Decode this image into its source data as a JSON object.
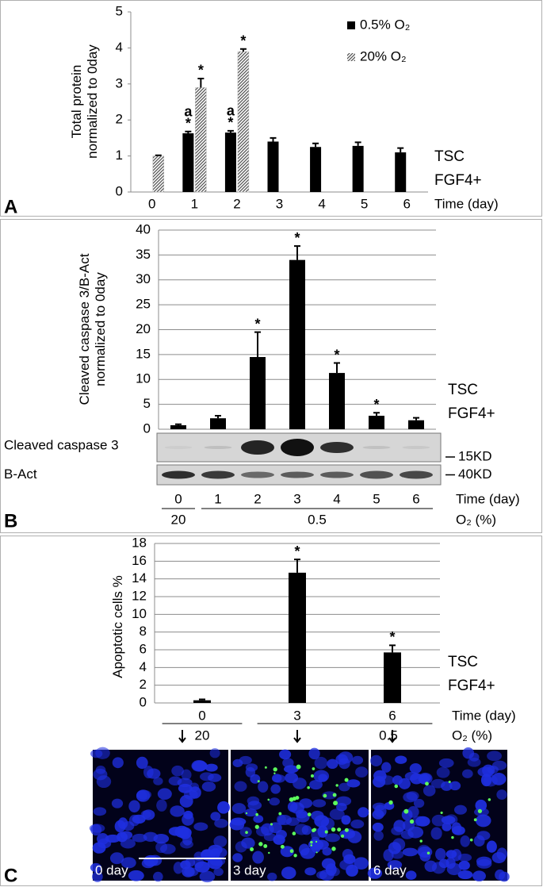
{
  "chart_data": [
    {
      "type": "bar",
      "panel": "A",
      "y_label": [
        "Total protein",
        "normalized to 0day"
      ],
      "categories": [
        "0",
        "1",
        "2",
        "3",
        "4",
        "5",
        "6"
      ],
      "x_label": "Time (day)",
      "row_labels": [
        "TSC",
        "FGF4+"
      ],
      "series": [
        {
          "name": "0.5% O₂",
          "color": "#000000",
          "pattern": "solid",
          "values": [
            null,
            1.63,
            1.65,
            1.4,
            1.25,
            1.28,
            1.1
          ],
          "errors": [
            null,
            0.05,
            0.05,
            0.1,
            0.1,
            0.1,
            0.12
          ],
          "marks": [
            null,
            [
              "*",
              "a"
            ],
            [
              "*",
              "a"
            ],
            null,
            null,
            null,
            null
          ]
        },
        {
          "name": "20% O₂",
          "color": "#555555",
          "pattern": "hatch",
          "values": [
            1.0,
            2.9,
            3.9,
            null,
            null,
            null,
            null
          ],
          "errors": [
            0.02,
            0.25,
            0.07,
            null,
            null,
            null,
            null
          ],
          "marks": [
            null,
            [
              "*"
            ],
            [
              "*"
            ],
            null,
            null,
            null,
            null
          ]
        }
      ],
      "ylim": [
        0,
        5
      ],
      "yticks": [
        0,
        1,
        2,
        3,
        4,
        5
      ],
      "grid": false,
      "legend": "top-right"
    },
    {
      "type": "bar",
      "panel": "B",
      "y_label": [
        "Cleaved caspase 3/B-Act",
        "normalized to 0day"
      ],
      "categories": [
        "0",
        "1",
        "2",
        "3",
        "4",
        "5",
        "6"
      ],
      "x_label": "Time (day)",
      "row_labels": [
        "TSC",
        "FGF4+"
      ],
      "series": [
        {
          "color": "#000000",
          "pattern": "solid",
          "values": [
            0.8,
            2.2,
            14.5,
            34,
            11.3,
            2.7,
            1.8
          ],
          "errors": [
            0.2,
            0.5,
            5,
            2.8,
            2,
            0.6,
            0.5
          ],
          "marks": [
            null,
            null,
            [
              "*"
            ],
            [
              "*"
            ],
            [
              "*"
            ],
            [
              "*"
            ],
            null
          ]
        }
      ],
      "ylim": [
        0,
        40
      ],
      "yticks": [
        0,
        5,
        10,
        15,
        20,
        25,
        30,
        35,
        40
      ],
      "grid": true,
      "blot": [
        {
          "label": "Cleaved caspase 3",
          "size": "15KD"
        },
        {
          "label": "B-Act",
          "size": "40KD"
        }
      ],
      "groups": [
        "20",
        "0.5"
      ],
      "group_label": "O₂ (%)"
    },
    {
      "type": "bar",
      "panel": "C",
      "y_label": [
        "Apoptotic cells %"
      ],
      "categories": [
        "0",
        "3",
        "6"
      ],
      "x_label": "Time (day)",
      "row_labels": [
        "TSC",
        "FGF4+"
      ],
      "series": [
        {
          "color": "#000000",
          "pattern": "solid",
          "values": [
            0.3,
            14.7,
            5.7
          ],
          "errors": [
            0.1,
            1.5,
            0.8
          ],
          "marks": [
            null,
            [
              "*"
            ],
            [
              "*"
            ]
          ]
        }
      ],
      "ylim": [
        0,
        18
      ],
      "yticks": [
        0,
        2,
        4,
        6,
        8,
        10,
        12,
        14,
        16,
        18
      ],
      "grid": true,
      "groups": [
        "20",
        "0.5"
      ],
      "group_label": "O₂ (%)",
      "images": [
        "0 day",
        "3 day",
        "6 day"
      ]
    }
  ]
}
